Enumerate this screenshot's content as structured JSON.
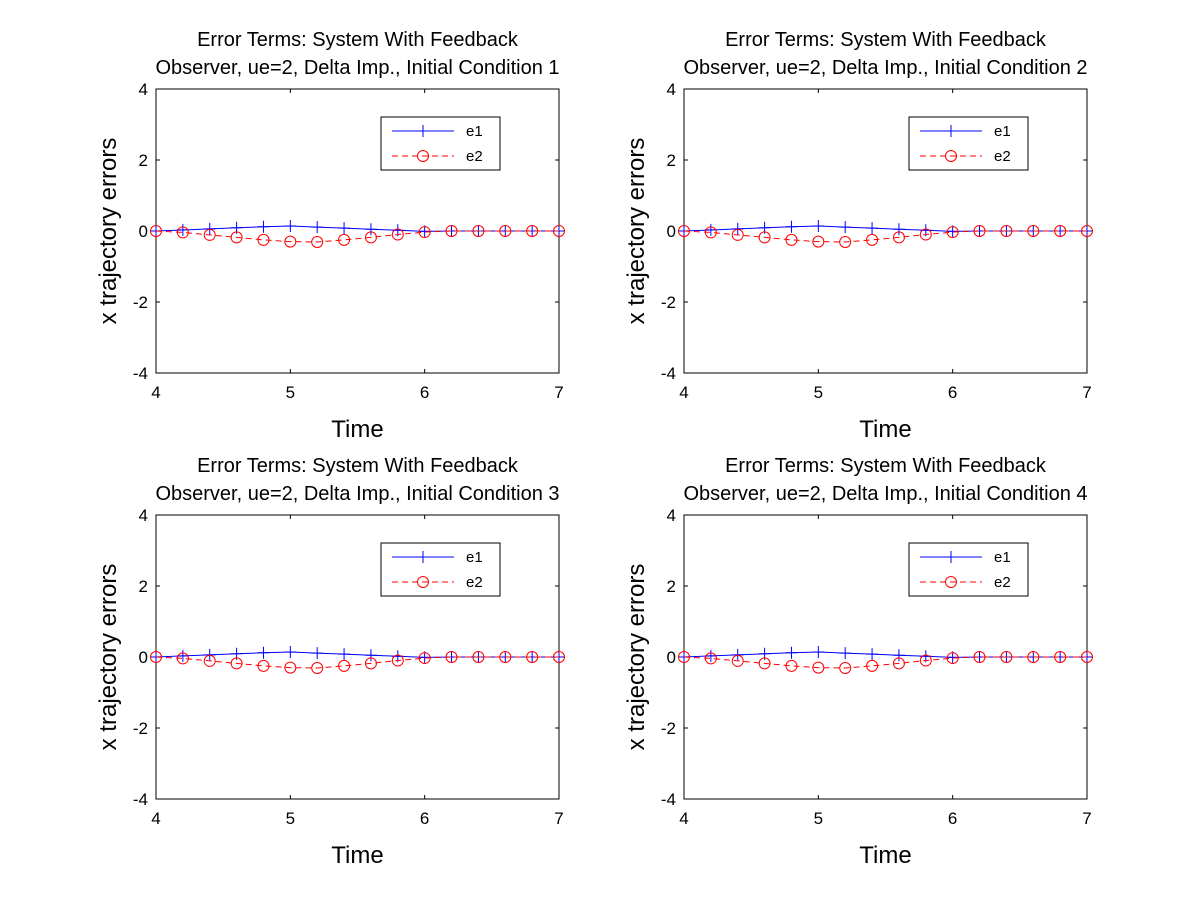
{
  "figure": {
    "background": "#ffffff"
  },
  "chart_data": [
    {
      "type": "line",
      "title_lines": [
        "Error Terms:  System With Feedback",
        "Observer, ue=2, Delta Imp., Initial Condition 1"
      ],
      "xlabel": "Time",
      "ylabel": "x trajectory errors",
      "xlim": [
        4,
        7
      ],
      "ylim": [
        -4,
        4
      ],
      "xticks": [
        4,
        5,
        6,
        7
      ],
      "yticks": [
        -4,
        -2,
        0,
        2,
        4
      ],
      "grid": false,
      "legend_position": "top-right",
      "x": [
        4.0,
        4.2,
        4.4,
        4.6,
        4.8,
        5.0,
        5.2,
        5.4,
        5.6,
        5.8,
        6.0,
        6.2,
        6.4,
        6.6,
        6.8,
        7.0
      ],
      "series": [
        {
          "name": "e1",
          "color": "#0000ff",
          "line_style": "solid",
          "marker": "plus",
          "values": [
            0.0,
            0.03,
            0.06,
            0.09,
            0.12,
            0.14,
            0.11,
            0.08,
            0.05,
            0.02,
            -0.01,
            0.0,
            0.0,
            0.0,
            0.0,
            0.0
          ]
        },
        {
          "name": "e2",
          "color": "#ff0000",
          "line_style": "dashed",
          "marker": "circle",
          "values": [
            0.0,
            -0.04,
            -0.11,
            -0.18,
            -0.25,
            -0.3,
            -0.31,
            -0.25,
            -0.18,
            -0.1,
            -0.03,
            0.0,
            0.0,
            0.0,
            0.0,
            0.0
          ]
        }
      ]
    },
    {
      "type": "line",
      "title_lines": [
        "Error Terms:  System With Feedback",
        "Observer, ue=2, Delta Imp., Initial Condition 2"
      ],
      "xlabel": "Time",
      "ylabel": "x trajectory errors",
      "xlim": [
        4,
        7
      ],
      "ylim": [
        -4,
        4
      ],
      "xticks": [
        4,
        5,
        6,
        7
      ],
      "yticks": [
        -4,
        -2,
        0,
        2,
        4
      ],
      "grid": false,
      "legend_position": "top-right",
      "x": [
        4.0,
        4.2,
        4.4,
        4.6,
        4.8,
        5.0,
        5.2,
        5.4,
        5.6,
        5.8,
        6.0,
        6.2,
        6.4,
        6.6,
        6.8,
        7.0
      ],
      "series": [
        {
          "name": "e1",
          "color": "#0000ff",
          "line_style": "solid",
          "marker": "plus",
          "values": [
            0.0,
            0.03,
            0.06,
            0.09,
            0.12,
            0.14,
            0.11,
            0.08,
            0.05,
            0.02,
            -0.01,
            0.0,
            0.0,
            0.0,
            0.0,
            0.0
          ]
        },
        {
          "name": "e2",
          "color": "#ff0000",
          "line_style": "dashed",
          "marker": "circle",
          "values": [
            0.0,
            -0.04,
            -0.11,
            -0.18,
            -0.25,
            -0.3,
            -0.31,
            -0.25,
            -0.18,
            -0.1,
            -0.03,
            0.0,
            0.0,
            0.0,
            0.0,
            0.0
          ]
        }
      ]
    },
    {
      "type": "line",
      "title_lines": [
        "Error Terms:  System With Feedback",
        "Observer, ue=2, Delta Imp., Initial Condition 3"
      ],
      "xlabel": "Time",
      "ylabel": "x trajectory errors",
      "xlim": [
        4,
        7
      ],
      "ylim": [
        -4,
        4
      ],
      "xticks": [
        4,
        5,
        6,
        7
      ],
      "yticks": [
        -4,
        -2,
        0,
        2,
        4
      ],
      "grid": false,
      "legend_position": "top-right",
      "x": [
        4.0,
        4.2,
        4.4,
        4.6,
        4.8,
        5.0,
        5.2,
        5.4,
        5.6,
        5.8,
        6.0,
        6.2,
        6.4,
        6.6,
        6.8,
        7.0
      ],
      "series": [
        {
          "name": "e1",
          "color": "#0000ff",
          "line_style": "solid",
          "marker": "plus",
          "values": [
            0.0,
            0.03,
            0.06,
            0.09,
            0.12,
            0.14,
            0.11,
            0.08,
            0.05,
            0.02,
            -0.01,
            0.0,
            0.0,
            0.0,
            0.0,
            0.0
          ]
        },
        {
          "name": "e2",
          "color": "#ff0000",
          "line_style": "dashed",
          "marker": "circle",
          "values": [
            0.0,
            -0.04,
            -0.11,
            -0.18,
            -0.25,
            -0.3,
            -0.31,
            -0.25,
            -0.18,
            -0.1,
            -0.03,
            0.0,
            0.0,
            0.0,
            0.0,
            0.0
          ]
        }
      ]
    },
    {
      "type": "line",
      "title_lines": [
        "Error Terms:  System With Feedback",
        "Observer, ue=2, Delta Imp., Initial Condition 4"
      ],
      "xlabel": "Time",
      "ylabel": "x trajectory errors",
      "xlim": [
        4,
        7
      ],
      "ylim": [
        -4,
        4
      ],
      "xticks": [
        4,
        5,
        6,
        7
      ],
      "yticks": [
        -4,
        -2,
        0,
        2,
        4
      ],
      "grid": false,
      "legend_position": "top-right",
      "x": [
        4.0,
        4.2,
        4.4,
        4.6,
        4.8,
        5.0,
        5.2,
        5.4,
        5.6,
        5.8,
        6.0,
        6.2,
        6.4,
        6.6,
        6.8,
        7.0
      ],
      "series": [
        {
          "name": "e1",
          "color": "#0000ff",
          "line_style": "solid",
          "marker": "plus",
          "values": [
            0.0,
            0.03,
            0.06,
            0.09,
            0.12,
            0.14,
            0.11,
            0.08,
            0.05,
            0.02,
            -0.01,
            0.0,
            0.0,
            0.0,
            0.0,
            0.0
          ]
        },
        {
          "name": "e2",
          "color": "#ff0000",
          "line_style": "dashed",
          "marker": "circle",
          "values": [
            0.0,
            -0.04,
            -0.11,
            -0.18,
            -0.25,
            -0.3,
            -0.31,
            -0.25,
            -0.18,
            -0.1,
            -0.03,
            0.0,
            0.0,
            0.0,
            0.0,
            0.0
          ]
        }
      ]
    }
  ]
}
